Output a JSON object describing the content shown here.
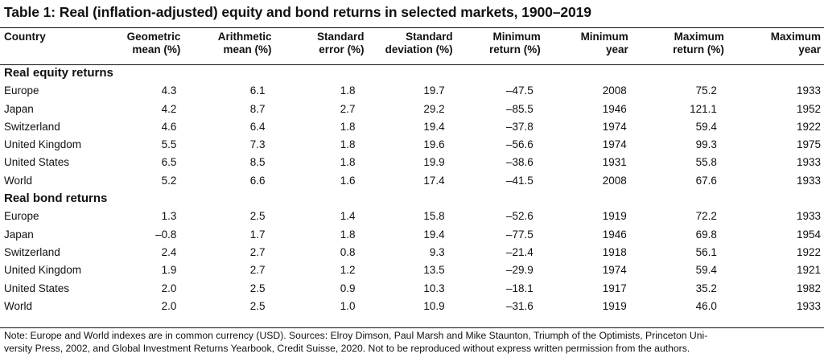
{
  "title": "Table 1: Real (inflation-adjusted) equity and bond returns in selected markets, 1900–2019",
  "columns": [
    {
      "line1": "Country",
      "line2": ""
    },
    {
      "line1": "Geometric",
      "line2": "mean (%)"
    },
    {
      "line1": "Arithmetic",
      "line2": "mean (%)"
    },
    {
      "line1": "Standard",
      "line2": "error (%)"
    },
    {
      "line1": "Standard",
      "line2": "deviation (%)"
    },
    {
      "line1": "Minimum",
      "line2": "return (%)"
    },
    {
      "line1": "Minimum",
      "line2": "year"
    },
    {
      "line1": "Maximum",
      "line2": "return (%)"
    },
    {
      "line1": "Maximum",
      "line2": "year"
    }
  ],
  "sections": [
    {
      "heading": "Real equity returns",
      "rows": [
        [
          "Europe",
          "4.3",
          "6.1",
          "1.8",
          "19.7",
          "–47.5",
          "2008",
          "75.2",
          "1933"
        ],
        [
          "Japan",
          "4.2",
          "8.7",
          "2.7",
          "29.2",
          "–85.5",
          "1946",
          "121.1",
          "1952"
        ],
        [
          "Switzerland",
          "4.6",
          "6.4",
          "1.8",
          "19.4",
          "–37.8",
          "1974",
          "59.4",
          "1922"
        ],
        [
          "United Kingdom",
          "5.5",
          "7.3",
          "1.8",
          "19.6",
          "–56.6",
          "1974",
          "99.3",
          "1975"
        ],
        [
          "United States",
          "6.5",
          "8.5",
          "1.8",
          "19.9",
          "–38.6",
          "1931",
          "55.8",
          "1933"
        ],
        [
          "World",
          "5.2",
          "6.6",
          "1.6",
          "17.4",
          "–41.5",
          "2008",
          "67.6",
          "1933"
        ]
      ]
    },
    {
      "heading": "Real bond returns",
      "rows": [
        [
          "Europe",
          "1.3",
          "2.5",
          "1.4",
          "15.8",
          "–52.6",
          "1919",
          "72.2",
          "1933"
        ],
        [
          "Japan",
          "–0.8",
          "1.7",
          "1.8",
          "19.4",
          "–77.5",
          "1946",
          "69.8",
          "1954"
        ],
        [
          "Switzerland",
          "2.4",
          "2.7",
          "0.8",
          "9.3",
          "–21.4",
          "1918",
          "56.1",
          "1922"
        ],
        [
          "United Kingdom",
          "1.9",
          "2.7",
          "1.2",
          "13.5",
          "–29.9",
          "1974",
          "59.4",
          "1921"
        ],
        [
          "United States",
          "2.0",
          "2.5",
          "0.9",
          "10.3",
          "–18.1",
          "1917",
          "35.2",
          "1982"
        ],
        [
          "World",
          "2.0",
          "2.5",
          "1.0",
          "10.9",
          "–31.6",
          "1919",
          "46.0",
          "1933"
        ]
      ]
    }
  ],
  "note": {
    "line1": "Note: Europe and World indexes are in common currency (USD).  Sources: Elroy Dimson, Paul Marsh and Mike Staunton, Triumph of the Optimists, Princeton Uni-",
    "line2": "versity Press, 2002, and Global Investment Returns Yearbook, Credit Suisse, 2020. Not to be reproduced without express written permission from the authors."
  }
}
